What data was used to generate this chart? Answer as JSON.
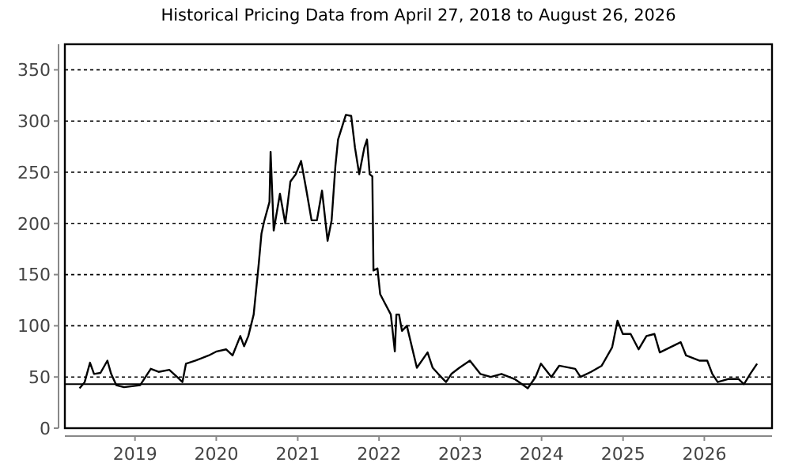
{
  "chart_data": {
    "type": "line",
    "title": "Historical Pricing Data from April 27, 2018 to August 26, 2026",
    "x": [
      "2018-04-27",
      "2018-05-20",
      "2018-06-13",
      "2018-07-01",
      "2018-07-30",
      "2018-08-30",
      "2018-09-16",
      "2018-10-09",
      "2018-11-13",
      "2018-12-19",
      "2019-01-24",
      "2019-03-13",
      "2019-04-17",
      "2019-06-04",
      "2019-07-09",
      "2019-08-02",
      "2019-08-18",
      "2019-09-30",
      "2019-11-28",
      "2020-01-03",
      "2020-02-14",
      "2020-03-14",
      "2020-04-18",
      "2020-05-05",
      "2020-05-24",
      "2020-06-17",
      "2020-07-10",
      "2020-07-22",
      "2020-08-03",
      "2020-08-27",
      "2020-09-01",
      "2020-09-15",
      "2020-10-13",
      "2020-11-06",
      "2020-11-29",
      "2020-12-23",
      "2021-01-16",
      "2021-02-09",
      "2021-03-04",
      "2021-03-28",
      "2021-04-20",
      "2021-05-15",
      "2021-06-02",
      "2021-06-19",
      "2021-07-01",
      "2021-08-05",
      "2021-08-29",
      "2021-09-15",
      "2021-10-04",
      "2021-10-27",
      "2021-11-08",
      "2021-11-20",
      "2021-12-02",
      "2021-12-07",
      "2021-12-25",
      "2022-01-06",
      "2022-01-30",
      "2022-02-23",
      "2022-03-13",
      "2022-03-20",
      "2022-04-01",
      "2022-04-14",
      "2022-05-06",
      "2022-06-20",
      "2022-08-07",
      "2022-08-30",
      "2022-09-24",
      "2022-10-29",
      "2022-11-22",
      "2022-12-28",
      "2023-02-13",
      "2023-04-01",
      "2023-05-18",
      "2023-07-05",
      "2023-09-02",
      "2023-10-31",
      "2023-12-05",
      "2023-12-29",
      "2024-02-14",
      "2024-03-20",
      "2024-05-31",
      "2024-06-24",
      "2024-08-10",
      "2024-09-27",
      "2024-11-13",
      "2024-12-07",
      "2024-12-31",
      "2025-02-04",
      "2025-03-12",
      "2025-04-16",
      "2025-05-22",
      "2025-06-15",
      "2025-08-01",
      "2025-09-17",
      "2025-10-11",
      "2025-12-09",
      "2026-01-14",
      "2026-02-06",
      "2026-03-02",
      "2026-04-17",
      "2026-06-04",
      "2026-06-28",
      "2026-07-26",
      "2026-08-26"
    ],
    "series": [
      {
        "color": "#000000",
        "values": [
          39,
          45,
          64,
          53,
          54,
          66,
          53,
          42,
          40,
          41,
          42,
          58,
          55,
          57,
          50,
          45,
          63,
          66,
          71,
          75,
          77,
          71,
          90,
          80,
          90,
          111,
          161,
          190,
          202,
          221,
          270,
          193,
          229,
          200,
          241,
          248,
          261,
          232,
          203,
          203,
          232,
          183,
          203,
          256,
          282,
          306,
          305,
          274,
          248,
          274,
          282,
          248,
          246,
          154,
          156,
          131,
          121,
          111,
          75,
          111,
          111,
          95,
          100,
          59,
          74,
          59,
          53,
          45,
          53,
          59,
          66,
          53,
          50,
          53,
          48,
          39,
          50,
          63,
          50,
          61,
          58,
          50,
          55,
          61,
          79,
          105,
          92,
          92,
          77,
          90,
          92,
          74,
          79,
          84,
          71,
          66,
          66,
          53,
          45,
          48,
          48,
          43,
          53,
          63
        ]
      }
    ],
    "xlim": [
      "2018-02-20",
      "2026-11-01"
    ],
    "xticks": [
      {
        "value": "2019",
        "label": "2019"
      },
      {
        "value": "2020",
        "label": "2020"
      },
      {
        "value": "2021",
        "label": "2021"
      },
      {
        "value": "2022",
        "label": "2022"
      },
      {
        "value": "2023",
        "label": "2023"
      },
      {
        "value": "2024",
        "label": "2024"
      },
      {
        "value": "2025",
        "label": "2025"
      },
      {
        "value": "2026",
        "label": "2026"
      }
    ],
    "ylim": [
      0,
      375
    ],
    "yticks": [
      0,
      50,
      100,
      150,
      200,
      250,
      300,
      350
    ],
    "grid": "y",
    "ref_lines": [
      {
        "axis": "y",
        "value": 43,
        "color": "#000000",
        "line_style": "solid"
      }
    ]
  }
}
